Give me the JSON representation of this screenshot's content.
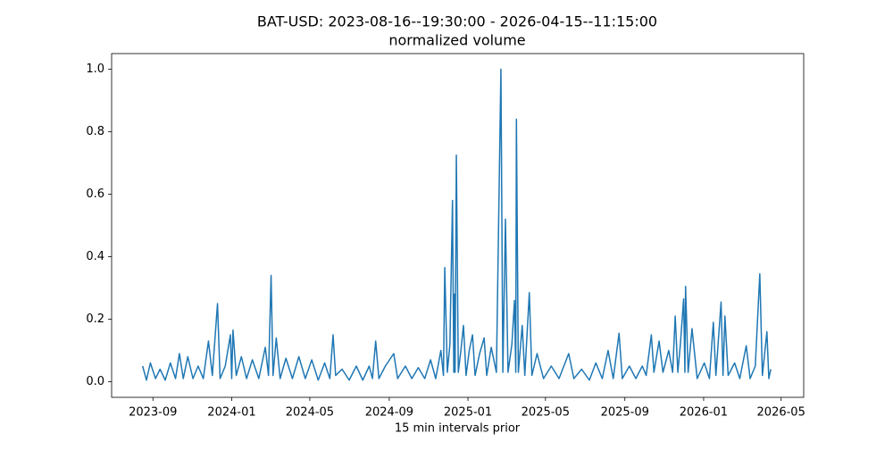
{
  "chart_data": {
    "type": "line",
    "title": "BAT-USD: 2023-08-16--19:30:00 - 2026-04-15--11:15:00",
    "subtitle": "normalized volume",
    "x_label": "15 min intervals prior",
    "color": "#1f77b4",
    "x": [
      "2023-08-16",
      "2023-08-22",
      "2023-08-28",
      "2023-09-05",
      "2023-09-12",
      "2023-09-20",
      "2023-09-28",
      "2023-10-06",
      "2023-10-12",
      "2023-10-18",
      "2023-10-25",
      "2023-11-02",
      "2023-11-10",
      "2023-11-18",
      "2023-11-26",
      "2023-12-02",
      "2023-12-10",
      "2023-12-14",
      "2023-12-22",
      "2023-12-30",
      "2024-01-01",
      "2024-01-03",
      "2024-01-08",
      "2024-01-16",
      "2024-01-24",
      "2024-02-02",
      "2024-02-12",
      "2024-02-22",
      "2024-02-27",
      "2024-03-02",
      "2024-03-05",
      "2024-03-10",
      "2024-03-16",
      "2024-03-25",
      "2024-04-04",
      "2024-04-14",
      "2024-04-24",
      "2024-05-04",
      "2024-05-14",
      "2024-05-24",
      "2024-06-01",
      "2024-06-06",
      "2024-06-10",
      "2024-06-20",
      "2024-07-01",
      "2024-07-12",
      "2024-07-22",
      "2024-08-01",
      "2024-08-06",
      "2024-08-11",
      "2024-08-16",
      "2024-08-26",
      "2024-09-08",
      "2024-09-14",
      "2024-09-26",
      "2024-10-06",
      "2024-10-16",
      "2024-10-26",
      "2024-11-04",
      "2024-11-12",
      "2024-11-20",
      "2024-11-24",
      "2024-11-26",
      "2024-11-30",
      "2024-12-04",
      "2024-12-08",
      "2024-12-10",
      "2024-12-11",
      "2024-12-12",
      "2024-12-14",
      "2024-12-17",
      "2024-12-21",
      "2024-12-25",
      "2024-12-29",
      "2025-01-03",
      "2025-01-08",
      "2025-01-12",
      "2025-01-19",
      "2025-01-26",
      "2025-01-30",
      "2025-02-06",
      "2025-02-14",
      "2025-02-21",
      "2025-02-24",
      "2025-02-28",
      "2025-03-04",
      "2025-03-10",
      "2025-03-14",
      "2025-03-16",
      "2025-03-17",
      "2025-03-20",
      "2025-03-26",
      "2025-03-30",
      "2025-04-06",
      "2025-04-10",
      "2025-04-18",
      "2025-04-28",
      "2025-05-10",
      "2025-05-22",
      "2025-06-06",
      "2025-06-14",
      "2025-06-26",
      "2025-07-08",
      "2025-07-18",
      "2025-07-28",
      "2025-08-06",
      "2025-08-14",
      "2025-08-23",
      "2025-08-28",
      "2025-09-08",
      "2025-09-18",
      "2025-09-28",
      "2025-10-04",
      "2025-10-12",
      "2025-10-16",
      "2025-10-24",
      "2025-10-30",
      "2025-11-08",
      "2025-11-14",
      "2025-11-18",
      "2025-11-22",
      "2025-11-26",
      "2025-12-01",
      "2025-12-03",
      "2025-12-04",
      "2025-12-08",
      "2025-12-14",
      "2025-12-22",
      "2026-01-02",
      "2026-01-10",
      "2026-01-16",
      "2026-01-20",
      "2026-01-28",
      "2026-01-31",
      "2026-02-03",
      "2026-02-08",
      "2026-02-18",
      "2026-02-26",
      "2026-03-08",
      "2026-03-14",
      "2026-03-22",
      "2026-03-29",
      "2026-04-02",
      "2026-04-09",
      "2026-04-12",
      "2026-04-15"
    ],
    "values": [
      0.05,
      0.005,
      0.06,
      0.01,
      0.04,
      0.005,
      0.06,
      0.01,
      0.09,
      0.01,
      0.08,
      0.01,
      0.05,
      0.01,
      0.13,
      0.02,
      0.25,
      0.01,
      0.05,
      0.15,
      0.01,
      0.165,
      0.02,
      0.08,
      0.01,
      0.07,
      0.01,
      0.11,
      0.02,
      0.34,
      0.02,
      0.14,
      0.01,
      0.075,
      0.01,
      0.08,
      0.01,
      0.07,
      0.005,
      0.06,
      0.01,
      0.15,
      0.02,
      0.04,
      0.005,
      0.05,
      0.005,
      0.05,
      0.01,
      0.13,
      0.01,
      0.05,
      0.09,
      0.01,
      0.05,
      0.01,
      0.045,
      0.01,
      0.07,
      0.01,
      0.1,
      0.02,
      0.365,
      0.03,
      0.12,
      0.58,
      0.03,
      0.28,
      0.03,
      0.725,
      0.03,
      0.1,
      0.18,
      0.02,
      0.1,
      0.15,
      0.02,
      0.09,
      0.14,
      0.02,
      0.11,
      0.03,
      1.0,
      0.03,
      0.52,
      0.03,
      0.12,
      0.26,
      0.03,
      0.84,
      0.03,
      0.18,
      0.02,
      0.285,
      0.02,
      0.09,
      0.01,
      0.05,
      0.01,
      0.09,
      0.01,
      0.04,
      0.005,
      0.06,
      0.01,
      0.1,
      0.01,
      0.155,
      0.01,
      0.05,
      0.01,
      0.05,
      0.02,
      0.15,
      0.03,
      0.13,
      0.03,
      0.1,
      0.03,
      0.21,
      0.03,
      0.12,
      0.265,
      0.03,
      0.305,
      0.03,
      0.17,
      0.01,
      0.06,
      0.01,
      0.19,
      0.02,
      0.255,
      0.02,
      0.21,
      0.02,
      0.06,
      0.01,
      0.115,
      0.01,
      0.05,
      0.345,
      0.02,
      0.16,
      0.01,
      0.04
    ],
    "xlim": [
      "2023-06-29",
      "2026-06-05"
    ],
    "xticks": [
      {
        "value": "2023-09-01",
        "label": "2023-09"
      },
      {
        "value": "2024-01-01",
        "label": "2024-01"
      },
      {
        "value": "2024-05-01",
        "label": "2024-05"
      },
      {
        "value": "2024-09-01",
        "label": "2024-09"
      },
      {
        "value": "2025-01-01",
        "label": "2025-01"
      },
      {
        "value": "2025-05-01",
        "label": "2025-05"
      },
      {
        "value": "2025-09-01",
        "label": "2025-09"
      },
      {
        "value": "2026-01-01",
        "label": "2026-01"
      },
      {
        "value": "2026-05-01",
        "label": "2026-05"
      }
    ],
    "ylim": [
      -0.05,
      1.05
    ],
    "yticks": [
      {
        "value": 0,
        "label": "0.0"
      },
      0.2,
      0.4,
      0.6,
      0.8,
      {
        "value": 1,
        "label": "1.0"
      }
    ],
    "grid": false
  }
}
